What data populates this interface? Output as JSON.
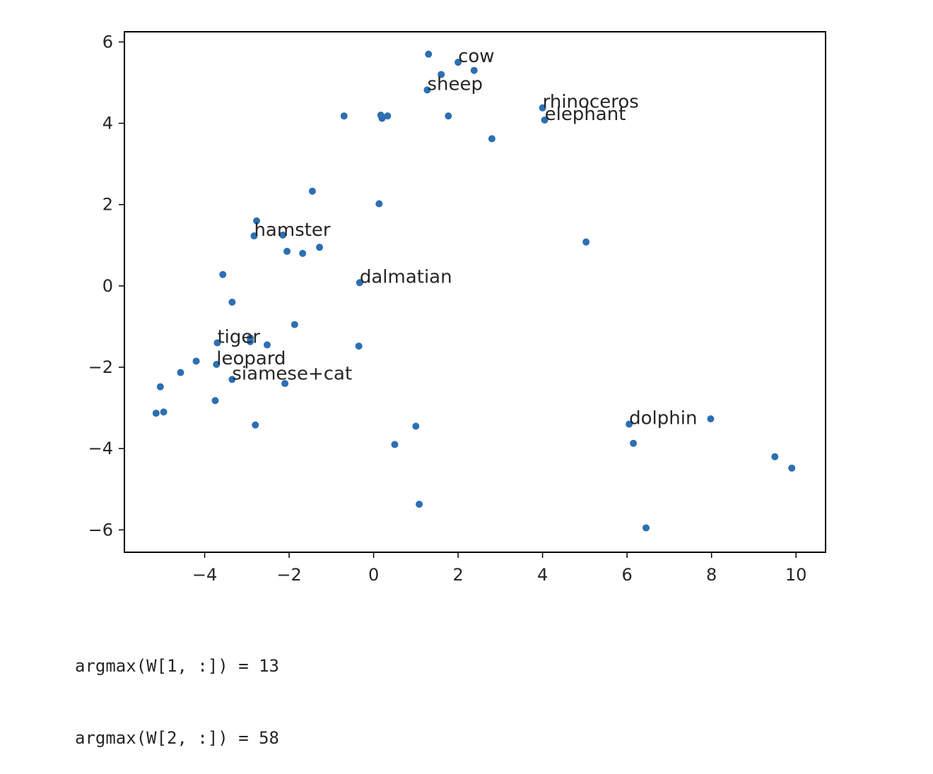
{
  "chart_data": {
    "type": "scatter",
    "title": "",
    "xlabel": "",
    "ylabel": "",
    "xlim": [
      -5.9,
      10.7
    ],
    "ylim": [
      -6.55,
      6.25
    ],
    "xticks": [
      -4,
      -2,
      0,
      2,
      4,
      6,
      8,
      10
    ],
    "yticks": [
      -6,
      -4,
      -2,
      0,
      2,
      4,
      6
    ],
    "xtick_labels": [
      "−4",
      "−2",
      "0",
      "2",
      "4",
      "6",
      "8",
      "10"
    ],
    "ytick_labels": [
      "−6",
      "−4",
      "−2",
      "0",
      "2",
      "4",
      "6"
    ],
    "point_color": "#2c6fb3",
    "grid": false,
    "points": [
      {
        "x": 1.3,
        "y": 5.7,
        "label": ""
      },
      {
        "x": 2.0,
        "y": 5.5,
        "label": "cow"
      },
      {
        "x": 2.38,
        "y": 5.3,
        "label": ""
      },
      {
        "x": 1.6,
        "y": 5.2,
        "label": ""
      },
      {
        "x": 1.27,
        "y": 4.82,
        "label": "sheep"
      },
      {
        "x": 4.0,
        "y": 4.38,
        "label": "rhinoceros"
      },
      {
        "x": 4.05,
        "y": 4.08,
        "label": "elephant"
      },
      {
        "x": -0.7,
        "y": 4.18,
        "label": ""
      },
      {
        "x": 0.17,
        "y": 4.2,
        "label": ""
      },
      {
        "x": 0.2,
        "y": 4.12,
        "label": ""
      },
      {
        "x": 0.33,
        "y": 4.18,
        "label": ""
      },
      {
        "x": 1.77,
        "y": 4.18,
        "label": ""
      },
      {
        "x": 2.8,
        "y": 3.62,
        "label": ""
      },
      {
        "x": -1.45,
        "y": 2.33,
        "label": ""
      },
      {
        "x": 0.13,
        "y": 2.02,
        "label": ""
      },
      {
        "x": -2.77,
        "y": 1.6,
        "label": ""
      },
      {
        "x": -2.83,
        "y": 1.23,
        "label": "hamster"
      },
      {
        "x": -2.15,
        "y": 1.25,
        "label": ""
      },
      {
        "x": -2.05,
        "y": 0.85,
        "label": ""
      },
      {
        "x": -1.68,
        "y": 0.8,
        "label": ""
      },
      {
        "x": -1.28,
        "y": 0.95,
        "label": ""
      },
      {
        "x": 5.03,
        "y": 1.08,
        "label": ""
      },
      {
        "x": -3.57,
        "y": 0.28,
        "label": ""
      },
      {
        "x": -0.33,
        "y": 0.08,
        "label": "dalmatian"
      },
      {
        "x": -3.35,
        "y": -0.4,
        "label": ""
      },
      {
        "x": -1.87,
        "y": -0.95,
        "label": ""
      },
      {
        "x": -2.92,
        "y": -1.28,
        "label": ""
      },
      {
        "x": -2.92,
        "y": -1.37,
        "label": ""
      },
      {
        "x": -3.7,
        "y": -1.4,
        "label": "tiger"
      },
      {
        "x": -2.52,
        "y": -1.45,
        "label": ""
      },
      {
        "x": -0.35,
        "y": -1.48,
        "label": ""
      },
      {
        "x": -4.2,
        "y": -1.85,
        "label": ""
      },
      {
        "x": -3.72,
        "y": -1.93,
        "label": "leopard"
      },
      {
        "x": -4.57,
        "y": -2.13,
        "label": ""
      },
      {
        "x": -3.35,
        "y": -2.3,
        "label": "siamese+cat"
      },
      {
        "x": -2.1,
        "y": -2.4,
        "label": ""
      },
      {
        "x": -5.05,
        "y": -2.48,
        "label": ""
      },
      {
        "x": -3.75,
        "y": -2.82,
        "label": ""
      },
      {
        "x": -5.15,
        "y": -3.13,
        "label": ""
      },
      {
        "x": -4.97,
        "y": -3.1,
        "label": ""
      },
      {
        "x": -2.8,
        "y": -3.42,
        "label": ""
      },
      {
        "x": 1.0,
        "y": -3.45,
        "label": ""
      },
      {
        "x": 6.05,
        "y": -3.4,
        "label": "dolphin"
      },
      {
        "x": 7.98,
        "y": -3.27,
        "label": ""
      },
      {
        "x": 0.5,
        "y": -3.9,
        "label": ""
      },
      {
        "x": 6.15,
        "y": -3.87,
        "label": ""
      },
      {
        "x": 9.5,
        "y": -4.2,
        "label": ""
      },
      {
        "x": 9.9,
        "y": -4.48,
        "label": ""
      },
      {
        "x": 1.08,
        "y": -5.37,
        "label": ""
      },
      {
        "x": 6.45,
        "y": -5.95,
        "label": ""
      }
    ]
  },
  "output_lines": [
    "argmax(W[1, :]) = 13",
    "argmax(W[2, :]) = 58"
  ]
}
